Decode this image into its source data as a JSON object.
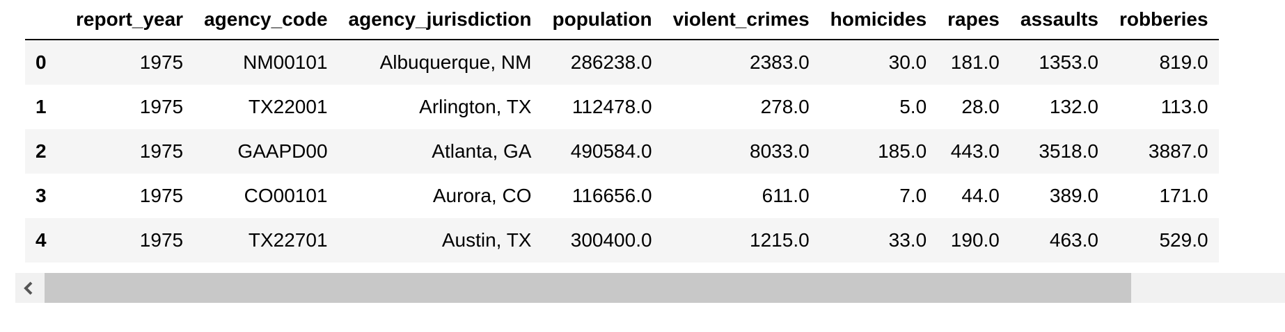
{
  "table": {
    "columns": [
      "",
      "report_year",
      "agency_code",
      "agency_jurisdiction",
      "population",
      "violent_crimes",
      "homicides",
      "rapes",
      "assaults",
      "robberies"
    ],
    "rows": [
      {
        "index": "0",
        "cells": [
          "1975",
          "NM00101",
          "Albuquerque, NM",
          "286238.0",
          "2383.0",
          "30.0",
          "181.0",
          "1353.0",
          "819.0"
        ]
      },
      {
        "index": "1",
        "cells": [
          "1975",
          "TX22001",
          "Arlington, TX",
          "112478.0",
          "278.0",
          "5.0",
          "28.0",
          "132.0",
          "113.0"
        ]
      },
      {
        "index": "2",
        "cells": [
          "1975",
          "GAAPD00",
          "Atlanta, GA",
          "490584.0",
          "8033.0",
          "185.0",
          "443.0",
          "3518.0",
          "3887.0"
        ]
      },
      {
        "index": "3",
        "cells": [
          "1975",
          "CO00101",
          "Aurora, CO",
          "116656.0",
          "611.0",
          "7.0",
          "44.0",
          "389.0",
          "171.0"
        ]
      },
      {
        "index": "4",
        "cells": [
          "1975",
          "TX22701",
          "Austin, TX",
          "300400.0",
          "1215.0",
          "33.0",
          "190.0",
          "463.0",
          "529.0"
        ]
      }
    ]
  },
  "scrollbar": {
    "left_arrow_icon": "chevron-left-icon",
    "thumb_fraction": 0.86
  },
  "colors": {
    "row_stripe": "#f5f5f5",
    "header_rule": "#000000",
    "scroll_track": "#f1f1f1",
    "scroll_thumb": "#c8c8c8",
    "arrow": "#555555"
  }
}
